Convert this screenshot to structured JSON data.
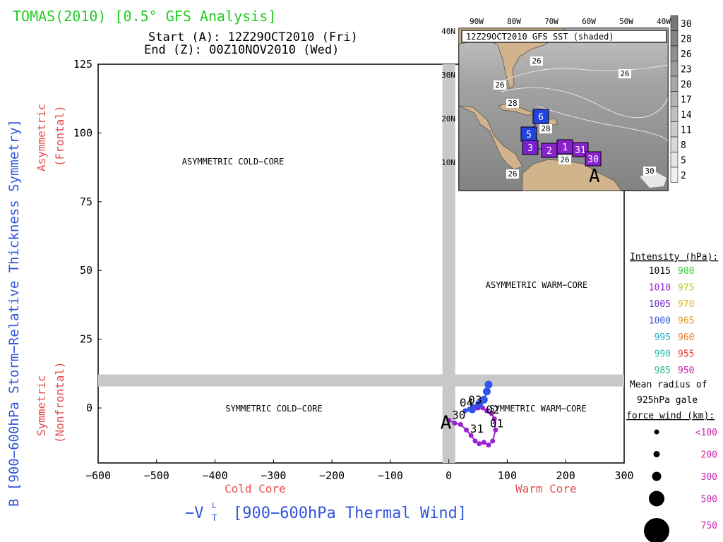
{
  "header": {
    "title": "TOMAS(2010) [0.5° GFS Analysis]",
    "start": "Start (A): 12Z29OCT2010 (Fri)",
    "end": "End (Z): 00Z10NOV2010 (Wed)"
  },
  "chart_data": {
    "type": "scatter",
    "xlabel": "−V",
    "xlabel_sub": "T",
    "xlabel_sup": "L",
    "xlabel_rest": "[900−600hPa Thermal Wind]",
    "ylabel": "B [900−600hPa Storm−Relative Thickness Symmetry]",
    "y_upper_label": "Asymmetric",
    "y_upper_label2": "(Frontal)",
    "y_lower_label": "Symmetric",
    "y_lower_label2": "(Nonfrontal)",
    "x_left_label": "Cold Core",
    "x_right_label": "Warm Core",
    "xlim": [
      -600,
      300
    ],
    "ylim": [
      -20,
      125
    ],
    "xticks": [
      "−600",
      "−500",
      "−400",
      "−300",
      "−200",
      "−100",
      "0",
      "100",
      "200",
      "300"
    ],
    "yticks": [
      "0",
      "25",
      "50",
      "75",
      "100",
      "125"
    ],
    "regions": {
      "asym_cold": "ASYMMETRIC COLD−CORE",
      "asym_warm": "ASYMMETRIC WARM−CORE",
      "sym_cold": "SYMMETRIC COLD−CORE",
      "sym_warm": "SYMMETRIC WARM−CORE"
    },
    "start_marker": "A",
    "track": [
      {
        "x": 0,
        "y": -4.5,
        "color": "#9922cc"
      },
      {
        "x": 10,
        "y": -5.5,
        "color": "#9922cc"
      },
      {
        "x": 20,
        "y": -6,
        "color": "#9922cc"
      },
      {
        "x": 30,
        "y": -8,
        "color": "#9922cc"
      },
      {
        "x": 38,
        "y": -10,
        "color": "#9922cc"
      },
      {
        "x": 45,
        "y": -12,
        "color": "#9922cc"
      },
      {
        "x": 52,
        "y": -13,
        "color": "#9922cc"
      },
      {
        "x": 60,
        "y": -12.5,
        "color": "#9922cc"
      },
      {
        "x": 68,
        "y": -13.5,
        "color": "#9922cc"
      },
      {
        "x": 75,
        "y": -12,
        "color": "#9922cc"
      },
      {
        "x": 80,
        "y": -8,
        "color": "#9922cc"
      },
      {
        "x": 78,
        "y": -4,
        "color": "#9922cc"
      },
      {
        "x": 73,
        "y": -2,
        "color": "#9922cc"
      },
      {
        "x": 65,
        "y": -1,
        "color": "#9922cc"
      },
      {
        "x": 58,
        "y": 0,
        "color": "#9922cc"
      },
      {
        "x": 50,
        "y": 0,
        "color": "#7b22cc"
      },
      {
        "x": 42,
        "y": 0.5,
        "color": "#4a2fd6"
      },
      {
        "x": 35,
        "y": -0.5,
        "color": "#3355ee"
      },
      {
        "x": 28,
        "y": -1,
        "color": "#3355ee"
      },
      {
        "x": 40,
        "y": -0.5,
        "color": "#3355ee"
      },
      {
        "x": 52,
        "y": 1.5,
        "color": "#3355ee"
      },
      {
        "x": 60,
        "y": 3,
        "color": "#3355ee"
      },
      {
        "x": 65,
        "y": 6,
        "color": "#3355ee"
      },
      {
        "x": 68,
        "y": 8.5,
        "color": "#3355ee"
      }
    ],
    "day_labels": [
      {
        "text": "30",
        "x": 17,
        "y": -4
      },
      {
        "text": "31",
        "x": 48,
        "y": -9
      },
      {
        "text": "01",
        "x": 82,
        "y": -7
      },
      {
        "text": "02",
        "x": 75,
        "y": -2
      },
      {
        "text": "03",
        "x": 45,
        "y": 1.5
      },
      {
        "text": "04",
        "x": 30,
        "y": 0.5
      }
    ]
  },
  "inset_map": {
    "title": "12Z29OCT2010 GFS SST (shaded)",
    "lon_labels": [
      "90W",
      "80W",
      "70W",
      "60W",
      "50W",
      "40W"
    ],
    "lat_labels": [
      "40N",
      "30N",
      "20N",
      "10N"
    ],
    "colorbar": [
      "30",
      "28",
      "26",
      "23",
      "20",
      "17",
      "14",
      "11",
      "8",
      "5",
      "2"
    ],
    "sst_labels": [
      "26",
      "26",
      "26",
      "28",
      "28",
      "26",
      "30",
      "26"
    ],
    "track_boxes": [
      {
        "label": "6",
        "color": "#2244dd"
      },
      {
        "label": "5",
        "color": "#2244dd"
      },
      {
        "label": "3",
        "color": "#7722cc"
      },
      {
        "label": "2",
        "color": "#8822cc"
      },
      {
        "label": "1",
        "color": "#8822cc"
      },
      {
        "label": "31",
        "color": "#8822cc"
      },
      {
        "label": "30",
        "color": "#8822cc"
      }
    ],
    "start_marker": "A"
  },
  "legend": {
    "intensity_title": "Intensity (hPa):",
    "intensity": [
      {
        "left": "1015",
        "left_color": "#000000",
        "right": "980",
        "right_color": "#33cc33"
      },
      {
        "left": "1010",
        "left_color": "#9922cc",
        "right": "975",
        "right_color": "#aacc33"
      },
      {
        "left": "1005",
        "left_color": "#7722cc",
        "right": "970",
        "right_color": "#ddbb22"
      },
      {
        "left": "1000",
        "left_color": "#3355dd",
        "right": "965",
        "right_color": "#dd9922"
      },
      {
        "left": "995",
        "left_color": "#22aacc",
        "right": "960",
        "right_color": "#ee7722"
      },
      {
        "left": "990",
        "left_color": "#22bbaa",
        "right": "955",
        "right_color": "#ee3333"
      },
      {
        "left": "985",
        "left_color": "#22bb88",
        "right": "950",
        "right_color": "#cc22aa"
      }
    ],
    "radius_title_1": "Mean radius of",
    "radius_title_2": "925hPa gale",
    "radius_title_3": "force wind (km):",
    "radius": [
      {
        "label": "<100",
        "r": 100
      },
      {
        "label": "200",
        "r": 200
      },
      {
        "label": "300",
        "r": 300
      },
      {
        "label": "500",
        "r": 500
      },
      {
        "label": "750",
        "r": 750
      }
    ],
    "radius_color": "#cc22aa"
  }
}
